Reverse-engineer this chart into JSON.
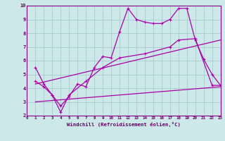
{
  "xlabel": "Windchill (Refroidissement éolien,°C)",
  "bg_color": "#cce8e8",
  "grid_color": "#aacccc",
  "line_color": "#aa00aa",
  "xlim": [
    0,
    23
  ],
  "ylim": [
    2,
    10
  ],
  "yticks": [
    2,
    3,
    4,
    5,
    6,
    7,
    8,
    9,
    10
  ],
  "xticks": [
    0,
    1,
    2,
    3,
    4,
    5,
    6,
    7,
    8,
    9,
    10,
    11,
    12,
    13,
    14,
    15,
    16,
    17,
    18,
    19,
    20,
    21,
    22,
    23
  ],
  "line1_x": [
    1,
    2,
    3,
    4,
    5,
    6,
    7,
    8,
    9,
    10,
    11,
    12,
    13,
    14,
    15,
    16,
    17,
    18,
    19,
    20,
    21,
    22,
    23
  ],
  "line1_y": [
    5.5,
    4.3,
    3.5,
    2.7,
    3.4,
    4.3,
    4.1,
    5.5,
    6.3,
    6.2,
    8.1,
    9.8,
    9.0,
    8.8,
    8.7,
    8.7,
    9.0,
    9.8,
    9.8,
    7.5,
    6.1,
    5.0,
    4.2
  ],
  "line2_x": [
    1,
    2,
    3,
    4,
    5,
    7,
    9,
    11,
    14,
    17,
    18,
    20,
    22,
    23
  ],
  "line2_y": [
    4.5,
    4.1,
    3.5,
    2.25,
    3.5,
    4.5,
    5.5,
    6.2,
    6.5,
    7.0,
    7.5,
    7.6,
    4.2,
    4.2
  ],
  "line3_x": [
    1,
    23
  ],
  "line3_y": [
    3.0,
    4.1
  ],
  "line4_x": [
    1,
    23
  ],
  "line4_y": [
    4.3,
    7.5
  ]
}
